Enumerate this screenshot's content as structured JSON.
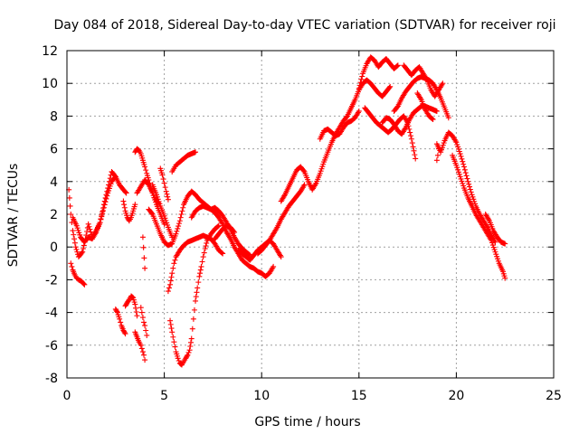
{
  "chart_data": {
    "type": "scatter",
    "title": "Day 084 of 2018, Sidereal Day-to-day VTEC variation (SDTVAR) for receiver roji",
    "xlabel": "GPS time / hours",
    "ylabel": "SDTVAR / TECUs",
    "xlim": [
      0,
      25
    ],
    "ylim": [
      -8,
      12
    ],
    "xticks": [
      0,
      5,
      10,
      15,
      20,
      25
    ],
    "yticks": [
      -8,
      -6,
      -4,
      -2,
      0,
      2,
      4,
      6,
      8,
      10,
      12
    ],
    "grid": true,
    "marker": "+",
    "color": "#ff0000",
    "series": [
      {
        "name": "seg-early-a",
        "x": [
          0.1,
          0.2,
          0.3,
          0.45,
          0.6,
          0.8,
          0.95,
          1.1,
          1.3,
          1.5,
          1.7,
          1.9,
          2.1,
          2.3,
          2.5,
          2.7,
          2.9,
          3.05
        ],
        "y": [
          3.5,
          2.0,
          1.0,
          0.0,
          -0.6,
          -0.3,
          0.5,
          1.4,
          0.6,
          1.0,
          1.5,
          2.6,
          3.6,
          4.6,
          4.3,
          3.8,
          3.5,
          3.3
        ]
      },
      {
        "name": "seg-early-b",
        "x": [
          0.2,
          0.3,
          0.4,
          0.5,
          0.6,
          0.75,
          0.9
        ],
        "y": [
          -1.0,
          -1.4,
          -1.7,
          -1.9,
          -2.0,
          -2.1,
          -2.3
        ]
      },
      {
        "name": "seg-early-c",
        "x": [
          0.3,
          0.5,
          0.7,
          0.9,
          1.1,
          1.3,
          1.5,
          1.7,
          1.9,
          2.1,
          2.3,
          2.5
        ],
        "y": [
          1.8,
          1.3,
          0.6,
          0.3,
          0.6,
          0.5,
          0.9,
          1.5,
          2.4,
          3.3,
          4.0,
          4.3
        ]
      },
      {
        "name": "seg-early-d",
        "x": [
          2.5,
          2.6,
          2.7,
          2.8,
          2.9,
          3.0
        ],
        "y": [
          -3.8,
          -4.0,
          -4.4,
          -4.8,
          -5.1,
          -5.3
        ]
      },
      {
        "name": "seg-early-e",
        "x": [
          2.9,
          3.0,
          3.1,
          3.2,
          3.3,
          3.4,
          3.5
        ],
        "y": [
          2.8,
          2.2,
          1.8,
          1.6,
          1.8,
          2.2,
          2.6
        ]
      },
      {
        "name": "seg-early-f",
        "x": [
          3.0,
          3.1,
          3.2,
          3.3,
          3.4,
          3.5,
          3.6
        ],
        "y": [
          -3.6,
          -3.4,
          -3.2,
          -3.0,
          -3.1,
          -3.5,
          -4.2
        ]
      },
      {
        "name": "seg-early-g",
        "x": [
          3.5,
          3.6,
          3.7,
          3.8,
          3.85,
          3.9,
          3.95,
          4.0
        ],
        "y": [
          -5.2,
          -5.5,
          -5.8,
          -6.0,
          -6.2,
          -6.4,
          -6.6,
          -6.9
        ]
      },
      {
        "name": "seg-early-h",
        "x": [
          3.5,
          3.6,
          3.7,
          3.8,
          3.9,
          4.0,
          4.1,
          4.2,
          4.3,
          4.4,
          4.5,
          4.6,
          4.7
        ],
        "y": [
          5.8,
          6.0,
          5.9,
          5.7,
          5.3,
          4.9,
          4.5,
          4.1,
          3.7,
          3.3,
          3.0,
          2.8,
          2.7
        ]
      },
      {
        "name": "seg-early-i",
        "x": [
          3.6,
          3.8,
          4.0,
          4.2,
          4.4,
          4.6,
          4.8,
          5.0
        ],
        "y": [
          3.3,
          3.7,
          4.1,
          3.8,
          3.3,
          2.6,
          2.0,
          1.4
        ]
      },
      {
        "name": "seg-early-j",
        "x": [
          3.8,
          3.85,
          3.9,
          3.95,
          4.0,
          4.05,
          4.1
        ],
        "y": [
          -3.7,
          -4.0,
          -4.3,
          -4.6,
          -4.8,
          -5.1,
          -5.4
        ]
      },
      {
        "name": "seg-early-k",
        "x": [
          3.9,
          4.0
        ],
        "y": [
          0.6,
          -1.3
        ]
      },
      {
        "name": "seg-early-l",
        "x": [
          4.2,
          4.4,
          4.6,
          4.8,
          5.0,
          5.2,
          5.4,
          5.6,
          5.8,
          6.0,
          6.2,
          6.4,
          6.6,
          6.8,
          7.0,
          7.2,
          7.4,
          7.6,
          7.8,
          8.0,
          8.2,
          8.4,
          8.6,
          8.8,
          9.0,
          9.2,
          9.4
        ],
        "y": [
          2.3,
          2.0,
          1.4,
          0.8,
          0.3,
          0.1,
          0.2,
          0.8,
          1.6,
          2.6,
          3.1,
          3.4,
          3.2,
          2.9,
          2.7,
          2.5,
          2.3,
          2.4,
          2.2,
          1.9,
          1.5,
          1.1,
          0.6,
          0.2,
          -0.1,
          -0.3,
          -0.5
        ]
      },
      {
        "name": "seg-early-m",
        "x": [
          4.4,
          4.6,
          4.8,
          5.0,
          5.2,
          5.4
        ],
        "y": [
          3.8,
          3.2,
          2.5,
          1.9,
          1.2,
          0.6
        ]
      },
      {
        "name": "seg-early-n",
        "x": [
          4.8,
          4.9,
          5.0,
          5.1,
          5.2
        ],
        "y": [
          4.8,
          4.4,
          3.9,
          3.4,
          2.9
        ]
      },
      {
        "name": "seg-mid-a",
        "x": [
          5.4,
          5.5,
          5.6,
          5.8,
          6.0,
          6.2,
          6.4,
          6.6
        ],
        "y": [
          4.6,
          4.8,
          5.0,
          5.2,
          5.4,
          5.6,
          5.7,
          5.8
        ]
      },
      {
        "name": "seg-mid-b",
        "x": [
          5.2,
          5.3,
          5.4,
          5.5,
          5.6,
          5.8,
          6.0,
          6.2,
          6.4,
          6.6,
          6.8,
          7.0,
          7.2,
          7.4,
          7.6,
          7.8,
          8.0
        ],
        "y": [
          -2.7,
          -2.3,
          -1.6,
          -1.0,
          -0.6,
          -0.2,
          0.1,
          0.3,
          0.4,
          0.5,
          0.6,
          0.7,
          0.6,
          0.5,
          0.2,
          -0.2,
          -0.4
        ]
      },
      {
        "name": "seg-mid-c",
        "x": [
          5.3,
          5.4,
          5.5,
          5.6,
          5.7,
          5.8,
          5.9,
          6.0,
          6.1,
          6.2,
          6.3,
          6.4,
          6.5,
          6.6,
          6.7,
          6.8,
          6.9,
          7.0,
          7.1,
          7.2,
          7.4,
          7.6,
          7.8
        ],
        "y": [
          -4.5,
          -5.2,
          -5.8,
          -6.4,
          -6.8,
          -7.1,
          -7.2,
          -7.0,
          -6.8,
          -6.6,
          -6.3,
          -5.6,
          -4.4,
          -3.3,
          -2.5,
          -1.8,
          -1.2,
          -0.6,
          -0.1,
          0.4,
          0.8,
          1.1,
          1.3
        ]
      },
      {
        "name": "seg-mid-d",
        "x": [
          6.4,
          6.6,
          6.8,
          7.0,
          7.2,
          7.4,
          7.6,
          7.8,
          8.0,
          8.2,
          8.4,
          8.6,
          8.8,
          9.0,
          9.2,
          9.4,
          9.6,
          9.8,
          10.0,
          10.2,
          10.4,
          10.6
        ],
        "y": [
          1.8,
          2.2,
          2.4,
          2.5,
          2.4,
          2.3,
          2.1,
          1.8,
          1.4,
          0.9,
          0.5,
          0.0,
          -0.4,
          -0.8,
          -1.0,
          -1.2,
          -1.3,
          -1.5,
          -1.6,
          -1.8,
          -1.6,
          -1.2
        ]
      },
      {
        "name": "seg-mid-e",
        "x": [
          7.6,
          7.8,
          8.0,
          8.2,
          8.4,
          8.6
        ],
        "y": [
          0.5,
          0.8,
          1.1,
          1.3,
          1.2,
          0.9
        ]
      },
      {
        "name": "seg-mid-f",
        "x": [
          8.8,
          9.0,
          9.2,
          9.4,
          9.6,
          9.8,
          10.0,
          10.2,
          10.4,
          10.6,
          10.8,
          11.0
        ],
        "y": [
          -0.2,
          -0.4,
          -0.6,
          -0.8,
          -0.5,
          -0.2,
          0.0,
          0.2,
          0.4,
          0.2,
          -0.2,
          -0.6
        ]
      },
      {
        "name": "seg-mid-g",
        "x": [
          9.8,
          10.0,
          10.2,
          10.4,
          10.6,
          10.8,
          11.0,
          11.2,
          11.4,
          11.6,
          11.8,
          12.0,
          12.2
        ],
        "y": [
          -0.4,
          -0.2,
          0.1,
          0.4,
          0.8,
          1.2,
          1.7,
          2.1,
          2.5,
          2.8,
          3.1,
          3.4,
          3.8
        ]
      },
      {
        "name": "seg-late-a",
        "x": [
          11.0,
          11.2,
          11.4,
          11.6,
          11.8,
          12.0,
          12.2,
          12.4,
          12.6,
          12.8,
          13.0,
          13.2,
          13.4,
          13.6,
          13.8,
          14.0,
          14.2,
          14.4,
          14.6,
          14.8,
          15.0,
          15.2,
          15.4,
          15.6,
          15.8,
          16.0,
          16.2,
          16.4,
          16.6
        ],
        "y": [
          2.8,
          3.2,
          3.7,
          4.2,
          4.7,
          4.9,
          4.6,
          4.0,
          3.5,
          3.9,
          4.5,
          5.2,
          5.8,
          6.4,
          6.9,
          7.3,
          7.7,
          8.0,
          8.5,
          9.0,
          9.6,
          10.0,
          10.2,
          10.0,
          9.7,
          9.4,
          9.2,
          9.5,
          9.8
        ]
      },
      {
        "name": "seg-late-b",
        "x": [
          13.0,
          13.2,
          13.4,
          13.6,
          13.8,
          14.0,
          14.2,
          14.4,
          14.6,
          14.8,
          15.0
        ],
        "y": [
          6.6,
          7.1,
          7.2,
          7.0,
          6.8,
          6.9,
          7.3,
          7.6,
          7.7,
          7.9,
          8.3
        ]
      },
      {
        "name": "seg-late-c",
        "x": [
          15.0,
          15.2,
          15.4,
          15.6,
          15.8,
          16.0,
          16.2,
          16.4,
          16.6,
          16.8,
          17.0
        ],
        "y": [
          9.7,
          10.6,
          11.2,
          11.6,
          11.4,
          11.0,
          11.3,
          11.5,
          11.2,
          10.9,
          11.1
        ]
      },
      {
        "name": "seg-late-d",
        "x": [
          15.3,
          15.5,
          15.7,
          15.9,
          16.1,
          16.3,
          16.5,
          16.7,
          16.9,
          17.1,
          17.3,
          17.5,
          17.7,
          17.9
        ],
        "y": [
          8.5,
          8.2,
          7.9,
          7.6,
          7.4,
          7.2,
          7.0,
          7.2,
          7.5,
          7.8,
          8.0,
          7.6,
          6.6,
          5.4
        ]
      },
      {
        "name": "seg-late-e",
        "x": [
          16.2,
          16.4,
          16.6,
          16.8,
          17.0,
          17.2,
          17.4,
          17.6,
          17.8,
          18.0,
          18.2,
          18.4,
          18.6,
          18.8,
          19.0
        ],
        "y": [
          7.6,
          7.9,
          7.8,
          7.5,
          7.1,
          6.9,
          7.3,
          7.8,
          8.2,
          8.4,
          8.6,
          8.6,
          8.5,
          8.4,
          8.3
        ]
      },
      {
        "name": "seg-late-f",
        "x": [
          16.8,
          17.0,
          17.2,
          17.4,
          17.6,
          17.8,
          18.0,
          18.2,
          18.4,
          18.6,
          18.8,
          19.0,
          19.2,
          19.4,
          19.6
        ],
        "y": [
          8.3,
          8.6,
          9.1,
          9.5,
          9.8,
          10.1,
          10.3,
          10.4,
          10.3,
          10.2,
          10.0,
          9.6,
          9.1,
          8.5,
          7.9
        ]
      },
      {
        "name": "seg-late-g",
        "x": [
          17.3,
          17.5,
          17.7,
          17.9,
          18.1,
          18.3,
          18.5,
          18.7,
          18.9,
          19.1,
          19.3
        ],
        "y": [
          11.1,
          10.8,
          10.5,
          10.8,
          11.0,
          10.6,
          10.2,
          9.6,
          9.2,
          9.6,
          10.0
        ]
      },
      {
        "name": "seg-late-h",
        "x": [
          18.0,
          18.2,
          18.4,
          18.6,
          18.8
        ],
        "y": [
          9.4,
          9.0,
          8.4,
          8.0,
          7.8
        ]
      },
      {
        "name": "seg-late-i",
        "x": [
          19.0,
          19.2,
          19.4,
          19.6,
          19.8,
          20.0,
          20.2,
          20.4,
          20.6,
          20.8,
          21.0,
          21.2,
          21.4,
          21.6,
          21.8,
          22.0
        ],
        "y": [
          6.3,
          5.8,
          6.5,
          7.0,
          6.8,
          6.4,
          5.7,
          4.9,
          4.0,
          3.2,
          2.5,
          2.0,
          1.6,
          1.2,
          0.7,
          0.3
        ]
      },
      {
        "name": "seg-late-j",
        "x": [
          19.8,
          20.0,
          20.2,
          20.4,
          20.6,
          20.8,
          21.0,
          21.2,
          21.4,
          21.6,
          21.8,
          22.0,
          22.2,
          22.4,
          22.5
        ],
        "y": [
          5.6,
          5.0,
          4.3,
          3.6,
          3.0,
          2.5,
          2.0,
          1.6,
          1.2,
          0.8,
          0.4,
          -0.3,
          -1.0,
          -1.5,
          -1.9
        ]
      },
      {
        "name": "seg-late-k",
        "x": [
          21.5,
          21.7,
          21.9,
          22.1,
          22.3,
          22.5
        ],
        "y": [
          2.0,
          1.6,
          1.0,
          0.6,
          0.3,
          0.2
        ]
      },
      {
        "name": "seg-late-l",
        "x": [
          19.0,
          19.05,
          19.1
        ],
        "y": [
          5.3,
          5.6,
          6.0
        ]
      }
    ]
  }
}
